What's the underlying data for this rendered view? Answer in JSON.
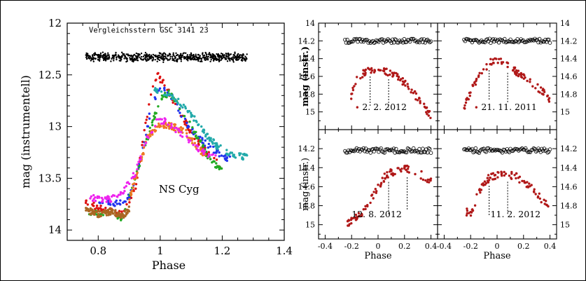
{
  "chart_data": [
    {
      "type": "scatter",
      "id": "main",
      "xlabel": "Phase",
      "ylabel": "mag (instrumentell)",
      "xlim": [
        0.7,
        1.4
      ],
      "ylim": [
        14.1,
        12.0
      ],
      "y_inverted": true,
      "xticks": [
        0.8,
        1.0,
        1.2,
        1.4
      ],
      "yticks": [
        12,
        12.5,
        13,
        13.5,
        14
      ],
      "grid": false,
      "annotations": [
        {
          "text": "Vergleichsstern GSC 3141 23",
          "x": 0.77,
          "y": 12.09
        },
        {
          "text": "NS Cyg",
          "x": 1.0,
          "y": 13.64
        }
      ],
      "series": [
        {
          "color": "#000000",
          "band": true,
          "x": [
            0.76,
            1.28
          ],
          "y": [
            12.33,
            12.33
          ],
          "spread": 0.05
        },
        {
          "color": "#dd1111",
          "x": [
            0.76,
            0.82,
            0.88,
            0.92,
            0.95,
            0.98,
            0.99,
            1.02,
            1.06,
            1.1,
            1.15,
            1.2
          ],
          "y": [
            13.74,
            13.8,
            13.85,
            13.6,
            13.0,
            12.55,
            12.5,
            12.62,
            12.85,
            13.05,
            13.25,
            13.4
          ]
        },
        {
          "color": "#2233ee",
          "x": [
            0.8,
            0.86,
            0.9,
            0.94,
            0.97,
            1.0,
            1.04,
            1.08,
            1.12,
            1.16,
            1.2,
            1.23
          ],
          "y": [
            13.72,
            13.74,
            13.68,
            13.3,
            12.82,
            12.6,
            12.72,
            12.95,
            13.1,
            13.2,
            13.28,
            13.32
          ]
        },
        {
          "color": "#22aa22",
          "x": [
            0.76,
            0.82,
            0.88,
            0.92,
            0.96,
            1.0,
            1.03,
            1.07,
            1.12,
            1.16,
            1.2
          ],
          "y": [
            13.82,
            13.85,
            13.88,
            13.5,
            13.1,
            12.72,
            12.68,
            12.85,
            13.1,
            13.32,
            13.42
          ]
        },
        {
          "color": "#22aaaa",
          "x": [
            0.98,
            1.03,
            1.07,
            1.1,
            1.14,
            1.18,
            1.22,
            1.25,
            1.28
          ],
          "y": [
            12.65,
            12.68,
            12.78,
            12.88,
            13.05,
            13.18,
            13.26,
            13.28,
            13.3
          ]
        },
        {
          "color": "#ee7722",
          "x": [
            0.9,
            0.93,
            0.96,
            1.0,
            1.04,
            1.08,
            1.12,
            1.15
          ],
          "y": [
            13.7,
            13.4,
            13.1,
            12.98,
            13.0,
            13.05,
            13.2,
            13.3
          ]
        },
        {
          "color": "#ee22ee",
          "x": [
            0.76,
            0.8,
            0.84,
            0.88,
            0.92,
            0.96,
            0.99,
            1.02,
            1.06,
            1.1,
            1.14,
            1.18
          ],
          "y": [
            13.68,
            13.7,
            13.7,
            13.62,
            13.45,
            13.1,
            12.95,
            12.95,
            13.05,
            13.15,
            13.25,
            13.3
          ]
        },
        {
          "color": "#aa6622",
          "x": [
            0.76,
            0.8,
            0.84,
            0.88,
            0.9
          ],
          "y": [
            13.8,
            13.85,
            13.82,
            13.86,
            13.8
          ]
        }
      ]
    },
    {
      "type": "scatter",
      "id": "panel-feb-2012",
      "label": "2. 2. 2012",
      "ylabel": "mag (instr.)",
      "xlim": [
        -0.45,
        0.45
      ],
      "ylim": [
        15.2,
        14.0
      ],
      "y_inverted": true,
      "yticks": [
        14,
        14.2,
        14.4,
        14.6,
        14.8,
        15
      ],
      "marker_lines_x": [
        -0.06,
        0.08
      ],
      "series": [
        {
          "name": "comparison",
          "color": "#000000",
          "marker": "open-circle",
          "x": [
            -0.25,
            0.4
          ],
          "y": [
            14.2,
            14.2
          ]
        },
        {
          "name": "variable",
          "color": "#b01818",
          "x": [
            -0.22,
            -0.16,
            -0.1,
            -0.06,
            0.0,
            0.05,
            0.1,
            0.15,
            0.2,
            0.25,
            0.3,
            0.35,
            0.4
          ],
          "y": [
            14.9,
            14.62,
            14.55,
            14.52,
            14.52,
            14.54,
            14.56,
            14.6,
            14.68,
            14.75,
            14.85,
            14.95,
            15.05
          ]
        }
      ]
    },
    {
      "type": "scatter",
      "id": "panel-nov-2011",
      "label": "21. 11. 2011",
      "xlim": [
        -0.45,
        0.45
      ],
      "ylim": [
        15.2,
        14.0
      ],
      "y_inverted": true,
      "yticks": [
        14,
        14.2,
        14.4,
        14.6,
        14.8,
        15
      ],
      "marker_lines_x": [
        -0.06,
        0.08
      ],
      "series": [
        {
          "name": "comparison",
          "color": "#000000",
          "marker": "open-circle",
          "x": [
            -0.25,
            0.4
          ],
          "y": [
            14.2,
            14.2
          ]
        },
        {
          "name": "variable",
          "color": "#b01818",
          "x": [
            -0.25,
            -0.18,
            -0.12,
            -0.06,
            0.0,
            0.05,
            0.1,
            0.15,
            0.2,
            0.25,
            0.3,
            0.35,
            0.4
          ],
          "y": [
            14.95,
            14.72,
            14.55,
            14.45,
            14.42,
            14.45,
            14.5,
            14.55,
            14.6,
            14.65,
            14.72,
            14.78,
            14.88
          ]
        }
      ]
    },
    {
      "type": "scatter",
      "id": "panel-aug-2012",
      "label": "12. 8. 2012",
      "xlabel": "Phase",
      "ylabel": "mag (instr.)",
      "xlim": [
        -0.45,
        0.45
      ],
      "ylim": [
        15.15,
        14.0
      ],
      "y_inverted": true,
      "xticks": [
        -0.4,
        -0.2,
        0,
        0.2,
        0.4
      ],
      "yticks": [
        14.2,
        14.4,
        14.6,
        14.8,
        15
      ],
      "marker_lines_x": [
        0.08,
        0.22
      ],
      "series": [
        {
          "name": "comparison",
          "color": "#000000",
          "marker": "open-circle",
          "x": [
            -0.25,
            0.4
          ],
          "y": [
            14.22,
            14.22
          ]
        },
        {
          "name": "variable",
          "color": "#b01818",
          "x": [
            -0.25,
            -0.2,
            -0.15,
            -0.1,
            -0.05,
            0.0,
            0.05,
            0.1,
            0.15,
            0.2,
            0.25,
            0.3,
            0.35,
            0.4
          ],
          "y": [
            15.0,
            14.95,
            14.9,
            14.85,
            14.72,
            14.6,
            14.5,
            14.45,
            14.43,
            14.42,
            14.42,
            14.45,
            14.5,
            14.55
          ]
        }
      ]
    },
    {
      "type": "scatter",
      "id": "panel-feb-2012b",
      "label": "11. 2. 2012",
      "xlabel": "Phase",
      "xlim": [
        -0.45,
        0.45
      ],
      "ylim": [
        15.15,
        14.0
      ],
      "y_inverted": true,
      "xticks": [
        -0.4,
        -0.2,
        0,
        0.2,
        0.4
      ],
      "yticks": [
        14.2,
        14.4,
        14.6,
        14.8,
        15
      ],
      "marker_lines_x": [
        -0.06,
        0.08
      ],
      "series": [
        {
          "name": "comparison",
          "color": "#000000",
          "marker": "open-circle",
          "x": [
            -0.25,
            0.4
          ],
          "y": [
            14.22,
            14.22
          ]
        },
        {
          "name": "variable",
          "color": "#b01818",
          "x": [
            -0.25,
            -0.2,
            -0.15,
            -0.1,
            -0.05,
            0.0,
            0.05,
            0.1,
            0.15,
            0.2,
            0.25,
            0.3,
            0.35,
            0.4
          ],
          "y": [
            14.85,
            14.9,
            14.7,
            14.55,
            14.5,
            14.48,
            14.45,
            14.48,
            14.5,
            14.55,
            14.6,
            14.68,
            14.75,
            14.82
          ]
        }
      ]
    }
  ]
}
